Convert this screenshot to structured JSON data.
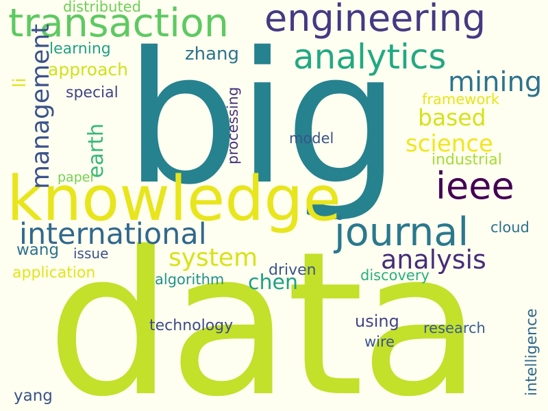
{
  "words": {
    "data": {
      "text": "data",
      "color": "#c3e02a"
    },
    "big": {
      "text": "big",
      "color": "#26828e"
    },
    "knowledge": {
      "text": "knowledge",
      "color": "#e8e51c"
    },
    "transaction": {
      "text": "transaction",
      "color": "#5ec962"
    },
    "engineering": {
      "text": "engineering",
      "color": "#443a83"
    },
    "journal": {
      "text": "journal",
      "color": "#2a788e"
    },
    "analytics": {
      "text": "analytics",
      "color": "#22a884"
    },
    "international": {
      "text": "international",
      "color": "#31688e"
    },
    "ieee": {
      "text": "ieee",
      "color": "#440154"
    },
    "management": {
      "text": "management",
      "color": "#3b528b"
    },
    "mining": {
      "text": "mining",
      "color": "#2c728e"
    },
    "analysis": {
      "text": "analysis",
      "color": "#472d7b"
    },
    "system": {
      "text": "system",
      "color": "#d8e219"
    },
    "science": {
      "text": "science",
      "color": "#f2e51d"
    },
    "earth": {
      "text": "earth",
      "color": "#35b779"
    },
    "based": {
      "text": "based",
      "color": "#d5e21a"
    },
    "chen": {
      "text": "chen",
      "color": "#1f9e89"
    },
    "approach": {
      "text": "approach",
      "color": "#d0e11c"
    },
    "learning": {
      "text": "learning",
      "color": "#1fa187"
    },
    "zhang": {
      "text": "zhang",
      "color": "#2c728e"
    },
    "distributed": {
      "text": "distributed",
      "color": "#6ece58"
    },
    "li": {
      "text": "li",
      "color": "#dde318"
    },
    "special": {
      "text": "special",
      "color": "#414487"
    },
    "framework": {
      "text": "framework",
      "color": "#e7e419"
    },
    "processing": {
      "text": "processing",
      "color": "#46327e"
    },
    "model": {
      "text": "model",
      "color": "#3b528b"
    },
    "industrial": {
      "text": "industrial",
      "color": "#a5db36"
    },
    "paper": {
      "text": "paper",
      "color": "#75d054"
    },
    "cloud": {
      "text": "cloud",
      "color": "#2d708e"
    },
    "wang": {
      "text": "wang",
      "color": "#2c728e"
    },
    "issue": {
      "text": "issue",
      "color": "#3b528b"
    },
    "application": {
      "text": "application",
      "color": "#e2e418"
    },
    "driven": {
      "text": "driven",
      "color": "#3b528b"
    },
    "algorithm": {
      "text": "algorithm",
      "color": "#21918c"
    },
    "discovery": {
      "text": "discovery",
      "color": "#29af7f"
    },
    "technology": {
      "text": "technology",
      "color": "#3e4a89"
    },
    "using": {
      "text": "using",
      "color": "#414487"
    },
    "research": {
      "text": "research",
      "color": "#365c8d"
    },
    "wire": {
      "text": "wire",
      "color": "#3b528b"
    },
    "intelligence": {
      "text": "intelligence",
      "color": "#31688e"
    },
    "yang": {
      "text": "yang",
      "color": "#3b528b"
    }
  }
}
